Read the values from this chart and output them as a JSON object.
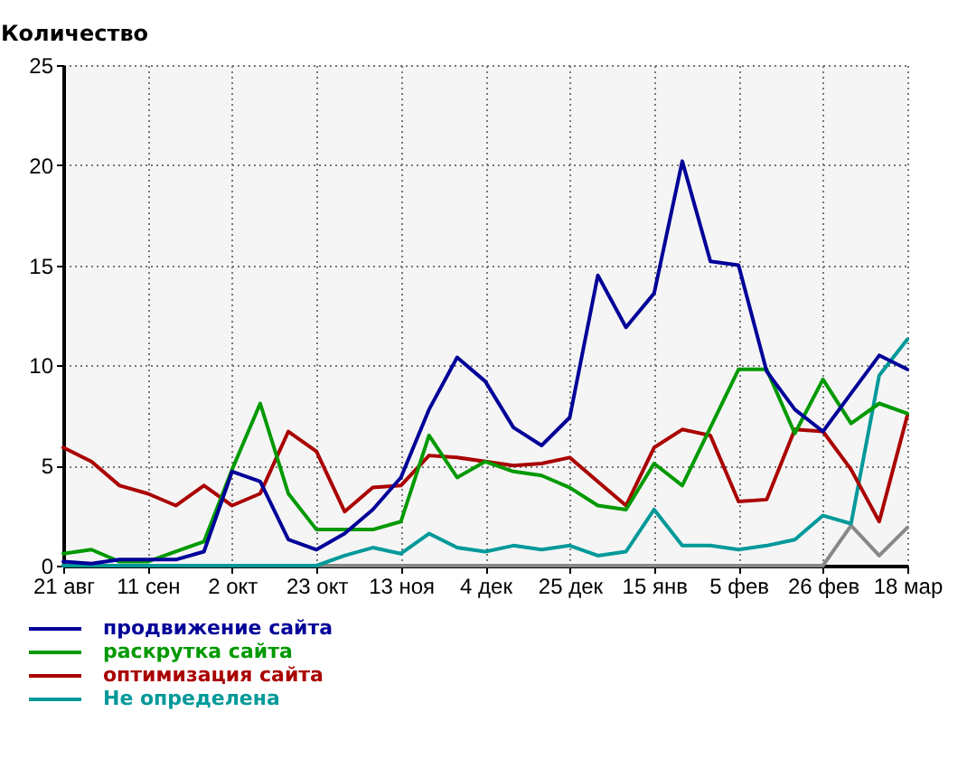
{
  "chart_data": {
    "type": "line",
    "ylabel": "Количество",
    "categories": [
      "21 авг",
      null,
      null,
      "11 сен",
      null,
      null,
      "2 окт",
      null,
      null,
      "23 окт",
      null,
      null,
      "13 ноя",
      null,
      null,
      "4 дек",
      null,
      null,
      "25 дек",
      null,
      null,
      "15 янв",
      null,
      null,
      "5 фев",
      null,
      null,
      "26 фев",
      null,
      null,
      "18 мар"
    ],
    "ylim": [
      0,
      25
    ],
    "yticks": [
      0,
      5,
      10,
      15,
      20,
      25
    ],
    "grid": true,
    "legend": "bottom",
    "series": [
      {
        "name": "продвижение сайта",
        "color": "#000099",
        "values": [
          0.2,
          0.1,
          0.3,
          0.3,
          0.3,
          0.7,
          4.7,
          4.2,
          1.3,
          0.8,
          1.6,
          2.8,
          4.4,
          7.8,
          10.4,
          9.2,
          6.9,
          6.0,
          7.4,
          14.5,
          11.9,
          13.6,
          20.2,
          15.2,
          15.0,
          9.7,
          7.8,
          6.7,
          8.6,
          10.5,
          9.8
        ]
      },
      {
        "name": "раскрутка сайта",
        "color": "#009900",
        "values": [
          0.6,
          0.8,
          0.2,
          0.2,
          0.7,
          1.2,
          4.8,
          8.1,
          3.6,
          1.8,
          1.8,
          1.8,
          2.2,
          6.5,
          4.4,
          5.2,
          4.7,
          4.5,
          3.9,
          3.0,
          2.8,
          5.1,
          4.0,
          6.9,
          9.8,
          9.8,
          6.6,
          9.3,
          7.1,
          8.1,
          7.6
        ]
      },
      {
        "name": "оптимизация сайта",
        "color": "#aa0000",
        "values": [
          5.9,
          5.2,
          4.0,
          3.6,
          3.0,
          4.0,
          3.0,
          3.6,
          6.7,
          5.7,
          2.7,
          3.9,
          4.0,
          5.5,
          5.4,
          5.2,
          5.0,
          5.1,
          5.4,
          4.2,
          3.0,
          5.9,
          6.8,
          6.5,
          3.2,
          3.3,
          6.8,
          6.7,
          4.8,
          2.2,
          7.5
        ]
      },
      {
        "name": "Не определена",
        "color": "#009999",
        "values": [
          0,
          0,
          0,
          0,
          0,
          0,
          0,
          0,
          0,
          0,
          0.5,
          0.9,
          0.6,
          1.6,
          0.9,
          0.7,
          1.0,
          0.8,
          1.0,
          0.5,
          0.7,
          2.8,
          1.0,
          1.0,
          0.8,
          1.0,
          1.3,
          2.5,
          2.1,
          9.5,
          11.3
        ]
      },
      {
        "color": "#888888",
        "values": [
          0,
          0,
          0,
          0,
          0,
          0,
          0,
          0,
          0,
          0,
          0,
          0,
          0,
          0,
          0,
          0,
          0,
          0,
          0,
          0,
          0,
          0,
          0,
          0,
          0,
          0,
          0,
          0,
          2.0,
          0.5,
          1.9
        ]
      }
    ]
  }
}
